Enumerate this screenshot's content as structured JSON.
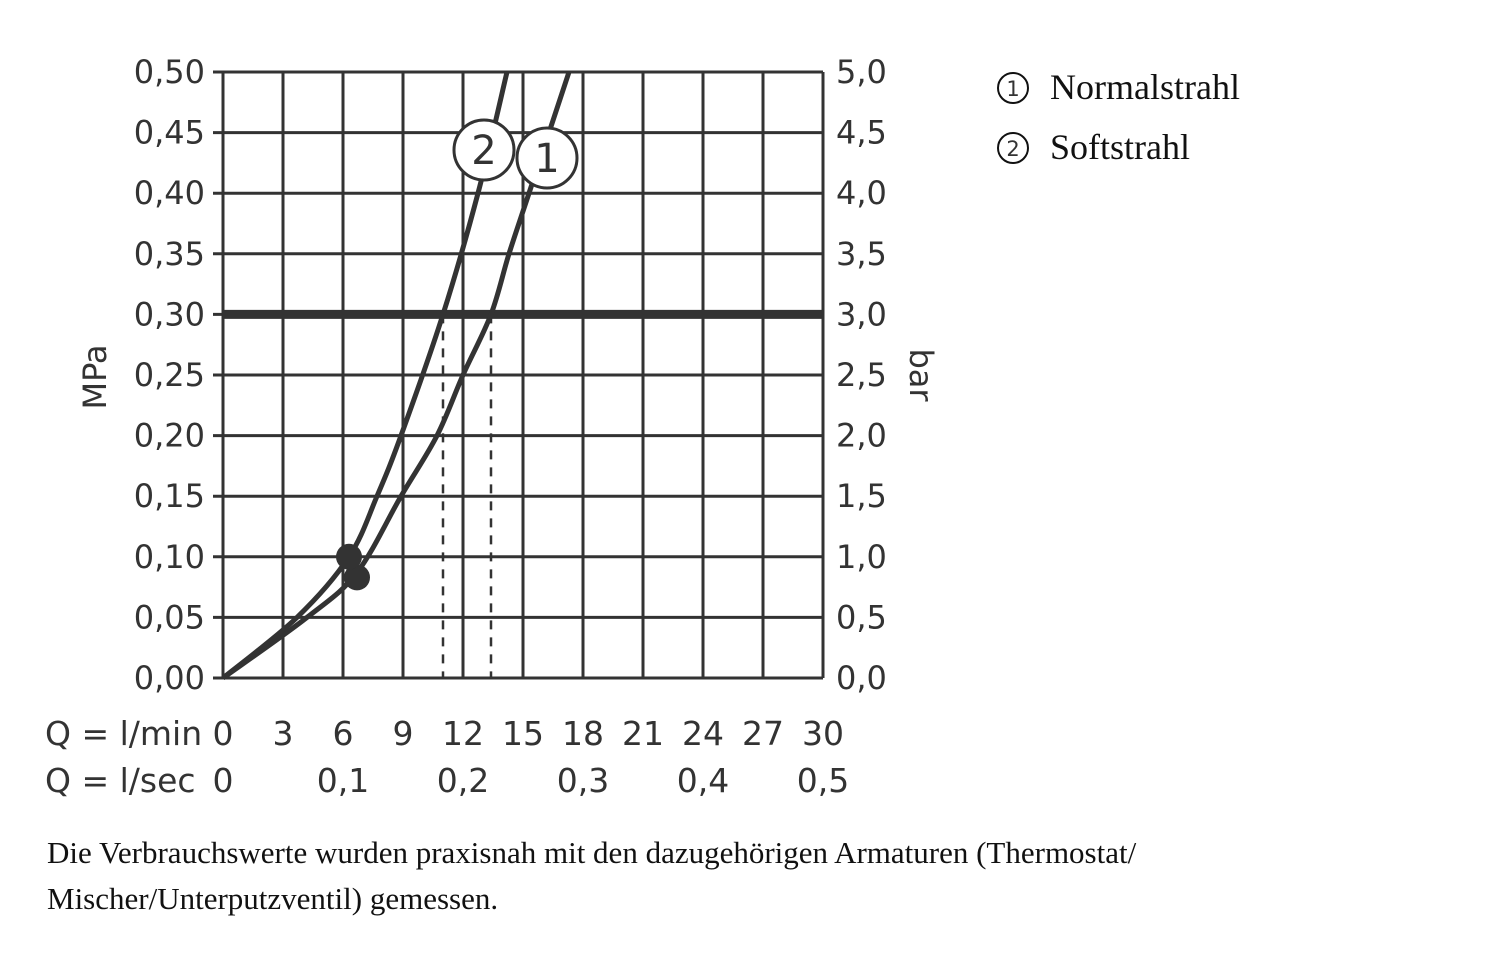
{
  "chart_data": {
    "type": "line",
    "xlabel_rows": [
      {
        "label": "Q = l/min",
        "ticks": [
          "0",
          "3",
          "6",
          "9",
          "12",
          "15",
          "18",
          "21",
          "24",
          "27",
          "30"
        ],
        "values": [
          0,
          3,
          6,
          9,
          12,
          15,
          18,
          21,
          24,
          27,
          30
        ]
      },
      {
        "label": "Q = l/sec",
        "ticks": [
          "0",
          "0,1",
          "0,2",
          "0,3",
          "0,4",
          "0,5"
        ],
        "values": [
          0,
          6,
          12,
          18,
          24,
          30
        ]
      }
    ],
    "ylabel_left": "MPa",
    "ylabel_right": "bar",
    "yticks_left": [
      "0,00",
      "0,05",
      "0,10",
      "0,15",
      "0,20",
      "0,25",
      "0,30",
      "0,35",
      "0,40",
      "0,45",
      "0,50"
    ],
    "yticks_right": [
      "0,0",
      "0,5",
      "1,0",
      "1,5",
      "2,0",
      "2,5",
      "3,0",
      "3,5",
      "4,0",
      "4,5",
      "5,0"
    ],
    "xlim": [
      0,
      30
    ],
    "ylim": [
      0,
      0.5
    ],
    "grid": true,
    "reference_line_y": 0.3,
    "series": [
      {
        "name": "Normalstrahl",
        "marker": "1",
        "x": [
          0,
          4.2,
          6.7,
          8.9,
          10.7,
          12.0,
          13.4,
          14.3,
          15.3,
          17.3
        ],
        "y": [
          0,
          0.05,
          0.087,
          0.15,
          0.2,
          0.25,
          0.3,
          0.35,
          0.4,
          0.5
        ],
        "dot": [
          6.7,
          0.083
        ],
        "drop_x": 13.4
      },
      {
        "name": "Softstrahl",
        "marker": "2",
        "x": [
          0,
          3.7,
          6.3,
          7.7,
          8.9,
          11.0,
          12.75,
          14.2
        ],
        "y": [
          0,
          0.05,
          0.1,
          0.15,
          0.2,
          0.3,
          0.4,
          0.5
        ],
        "dot": [
          6.3,
          0.1
        ],
        "drop_x": 11.0
      }
    ],
    "legend": {
      "placement": "right",
      "items": [
        {
          "marker": "1",
          "label": "Normalstrahl"
        },
        {
          "marker": "2",
          "label": "Softstrahl"
        }
      ]
    },
    "line_color": "#333333"
  },
  "caption": "Die Verbrauchswerte wurden praxisnah mit den dazugehörigen Armaturen (Thermostat/ Mischer/Unterputzventil) gemessen."
}
